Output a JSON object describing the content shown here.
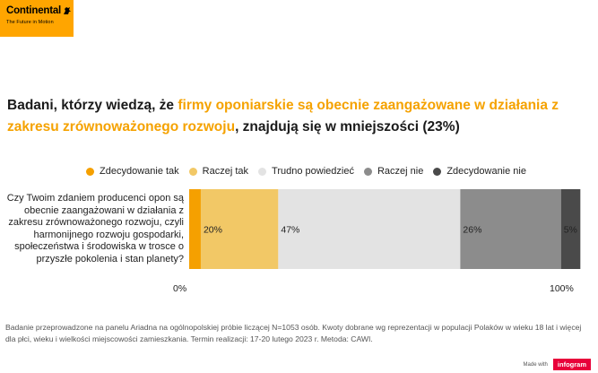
{
  "brand": {
    "name": "Continental",
    "tagline": "The Future in Motion",
    "color": "#ffa500"
  },
  "headline": {
    "part1": "Badani, którzy wiedzą, że ",
    "highlight": "firmy oponiarskie są obecnie zaangażowane w działania z zakresu zrównoważonego rozwoju",
    "part2": ", znajdują się w mniejszości (23%)",
    "highlight_color": "#f5a200"
  },
  "chart_data": {
    "type": "bar",
    "orientation": "horizontal",
    "stacked": true,
    "title": "",
    "categories": [
      "Czy Twoim zdaniem producenci opon są obecnie zaangażowani w działania z zakresu zrównoważonego rozwoju, czyli harmonijnego rozwoju gospodarki, społeczeństwa i środowiska w trosce o przyszłe pokolenia i stan planety?"
    ],
    "series": [
      {
        "name": "Zdecydowanie tak",
        "values": [
          3
        ],
        "label": "",
        "color": "#f5a000"
      },
      {
        "name": "Raczej tak",
        "values": [
          20
        ],
        "label": "20%",
        "color": "#f2c866"
      },
      {
        "name": "Trudno powiedzieć",
        "values": [
          47
        ],
        "label": "47%",
        "color": "#e3e3e3"
      },
      {
        "name": "Raczej nie",
        "values": [
          26
        ],
        "label": "26%",
        "color": "#8c8c8c"
      },
      {
        "name": "Zdecydowanie nie",
        "values": [
          5
        ],
        "label": "5%",
        "color": "#4a4a4a"
      }
    ],
    "xlim": [
      0,
      100
    ],
    "x_min_label": "0%",
    "x_max_label": "100%",
    "legend_position": "top"
  },
  "footnote": "Badanie przeprowadzone na panelu Ariadna na ogólnopolskiej próbie liczącej N=1053 osób. Kwoty dobrane wg reprezentacji w populacji Polaków w wieku 18 lat i więcej dla płci, wieku i wielkości miejscowości zamieszkania. Termin realizacji: 17-20 lutego 2023 r. Metoda: CAWI.",
  "credit": {
    "made_with": "Made with",
    "tool": "infogram"
  }
}
